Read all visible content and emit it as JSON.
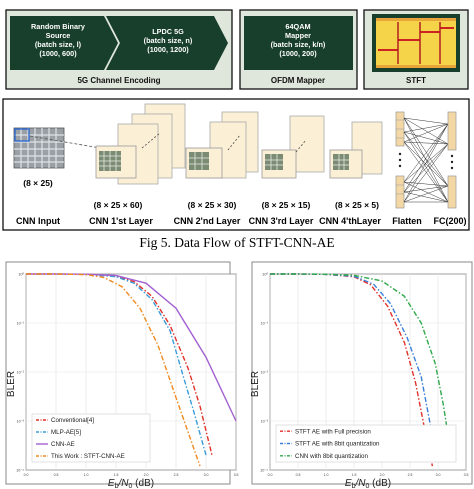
{
  "figure": {
    "pipeline": {
      "blocks": [
        {
          "text": [
            "Random Binary",
            "Source",
            "(batch size, l)",
            "(1000, 600)"
          ]
        },
        {
          "text": [
            "LPDC 5G",
            "(batch size, n)",
            "(1000, 1200)"
          ]
        },
        {
          "text": [
            "64QAM",
            "Mapper",
            "(batch size, k/n)",
            "(1000, 200)"
          ]
        }
      ],
      "group_labels": [
        "5G Channel Encoding",
        "OFDM Mapper",
        "STFT"
      ]
    },
    "cnn": {
      "dims": [
        "(8 × 25)",
        "(8 × 25 × 60)",
        "(8 × 25 × 30)",
        "(8 × 25 × 15)",
        "(8 × 25 × 5)"
      ],
      "layer_labels": [
        "CNN Input",
        "CNN 1'st Layer",
        "CNN 2'nd Layer",
        "CNN 3'rd Layer",
        "CNN 4'thLayer",
        "Flatten",
        "FC(200)"
      ]
    },
    "caption": "Fig 5. Data Flow of STFT-CNN-AE"
  },
  "colors": {
    "block_fill": "#183f2b",
    "group_fill": "#dfe7dc",
    "feature_map": "#fbefd6",
    "fc_fill": "#f3d8a6",
    "conventional": "#e0312a",
    "mlp": "#3a9bd9",
    "cnn": "#a260d0",
    "stft": "#f08a1e",
    "full_precision": "#e0312a",
    "ae8bit": "#3a7fd9",
    "cnn8bit": "#2ea84a"
  },
  "chart_data": [
    {
      "type": "line",
      "xlabel": "E_b/N_0 (dB)",
      "ylabel": "BLER",
      "y_scale": "log",
      "ylim": [
        0.0001,
        1
      ],
      "xlim": [
        0,
        3.5
      ],
      "x_tick_labels": [
        "0.0",
        "0.5",
        "1.0",
        "1.5",
        "2.0",
        "2.5",
        "3.0",
        "3.5"
      ],
      "y_tick_labels": [
        "10⁰",
        "10⁻¹",
        "10⁻²",
        "10⁻³",
        "10⁻⁴"
      ],
      "grid": true,
      "legend_position": "bottom-left",
      "series": [
        {
          "name": "Conventional[4]",
          "color": "#e0312a",
          "dash": "dashdot",
          "x": [
            0,
            0.5,
            1.0,
            1.5,
            1.8,
            2.1,
            2.4,
            2.7,
            2.9,
            3.1
          ],
          "y": [
            1,
            1,
            0.98,
            0.9,
            0.7,
            0.35,
            0.09,
            0.012,
            0.002,
            0.0002
          ]
        },
        {
          "name": "MLP-AE[5]",
          "color": "#3a9bd9",
          "dash": "dashdot",
          "x": [
            0,
            0.5,
            1.0,
            1.5,
            1.8,
            2.1,
            2.4,
            2.6,
            2.8,
            3.0
          ],
          "y": [
            1,
            1,
            0.98,
            0.88,
            0.65,
            0.3,
            0.07,
            0.01,
            0.0015,
            0.0002
          ]
        },
        {
          "name": "CNN-AE",
          "color": "#a260d0",
          "dash": "solid",
          "x": [
            0,
            0.5,
            1.0,
            1.5,
            2.0,
            2.5,
            3.0,
            3.5
          ],
          "y": [
            1,
            1,
            0.99,
            0.93,
            0.65,
            0.2,
            0.02,
            0.001
          ]
        },
        {
          "name": "This Work : STFT-CNN-AE",
          "color": "#f08a1e",
          "dash": "dashdot",
          "x": [
            0,
            0.5,
            1.0,
            1.3,
            1.6,
            1.9,
            2.2,
            2.5,
            2.7,
            2.9
          ],
          "y": [
            1,
            1,
            0.97,
            0.85,
            0.55,
            0.2,
            0.035,
            0.003,
            0.0006,
            0.00012
          ]
        }
      ]
    },
    {
      "type": "line",
      "xlabel": "E_b/N_0 (dB)",
      "ylabel": "BLER",
      "y_scale": "log",
      "ylim": [
        0.0001,
        1
      ],
      "xlim": [
        0,
        3.5
      ],
      "x_tick_labels": [
        "0.0",
        "0.5",
        "1.0",
        "1.5",
        "2.0",
        "2.5",
        "3.0",
        "3.5"
      ],
      "y_tick_labels": [
        "10⁰",
        "10⁻¹",
        "10⁻²",
        "10⁻³",
        "10⁻⁴"
      ],
      "grid": true,
      "legend_position": "bottom-left",
      "series": [
        {
          "name": "STFT AE with Full precision",
          "color": "#e0312a",
          "dash": "dashdot",
          "x": [
            0,
            0.5,
            1.0,
            1.5,
            1.8,
            2.1,
            2.4,
            2.6,
            2.75,
            2.9
          ],
          "y": [
            1,
            1,
            0.98,
            0.88,
            0.6,
            0.22,
            0.04,
            0.006,
            0.0008,
            0.00012
          ]
        },
        {
          "name": "STFT AE with 8bit quantization",
          "color": "#3a7fd9",
          "dash": "dashdot",
          "x": [
            0,
            0.5,
            1.0,
            1.5,
            1.85,
            2.15,
            2.45,
            2.7,
            2.85,
            3.0
          ],
          "y": [
            1,
            1,
            0.98,
            0.9,
            0.62,
            0.25,
            0.05,
            0.008,
            0.001,
            0.00015
          ]
        },
        {
          "name": "CNN with 8bit quantization",
          "color": "#2ea84a",
          "dash": "dashdot",
          "x": [
            0,
            0.5,
            1.0,
            1.5,
            2.0,
            2.4,
            2.7,
            2.95,
            3.1,
            3.25
          ],
          "y": [
            1,
            1,
            0.99,
            0.94,
            0.72,
            0.35,
            0.1,
            0.015,
            0.002,
            0.00015
          ]
        }
      ]
    }
  ]
}
